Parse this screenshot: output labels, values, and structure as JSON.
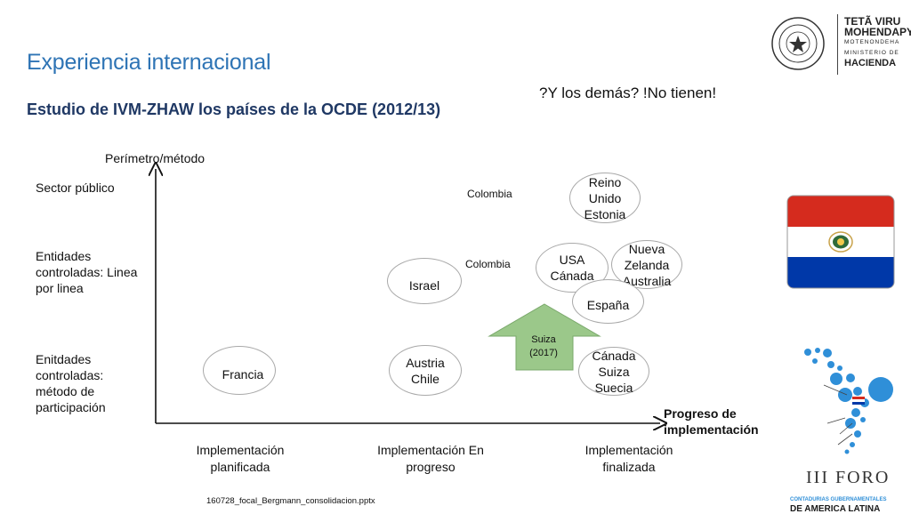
{
  "title": "Experiencia internacional",
  "subtitle": "Estudio de IVM-ZHAW  los países de la OCDE (2012/13)",
  "note": "?Y los demás? !No tienen!",
  "footer_file": "160728_focal_Bergmann_consolidacion.pptx",
  "axes": {
    "y_title": "Perímetro/método",
    "x_title": "Progreso de implementación",
    "y_levels": [
      "Sector público",
      "Entidades controladas: Linea por linea",
      "Enitdades controladas: método de participación"
    ],
    "x_levels": [
      "Implementación planificada",
      "Implementación En progreso",
      "Implementación finalizada"
    ]
  },
  "nodes": {
    "reino": "Reino Unido Estonia",
    "usa": "USA Cánada",
    "nz": "Nueva Zelanda Australia",
    "espana": "España",
    "israel": "Israel",
    "austria": "Austria Chile",
    "francia": "Francia",
    "canada2": "Cánada Suiza Suecia",
    "colombia1": "Colombia",
    "colombia2": "Colombia",
    "suiza_arrow": "Suiza (2017)"
  },
  "logo": {
    "line1": "TETÃ VIRU",
    "line2": "MOHENDAPY",
    "line3": "MOTENONDEHA",
    "line4": "MINISTERIO DE",
    "line5": "HACIENDA",
    "seal_text": "REPÚBLICA DEL PARAGUAY"
  },
  "foro": {
    "title": "III FORO",
    "line1": "CONTADURIAS GUBERNAMENTALES",
    "line2": "DE AMERICA LATINA"
  },
  "colors": {
    "title": "#2e74b5",
    "subtitle": "#1f3864",
    "arrow": "#9bc88a",
    "flag_red": "#d52b1e",
    "flag_blue": "#0038a8",
    "foro_blue": "#2f8fd8"
  }
}
